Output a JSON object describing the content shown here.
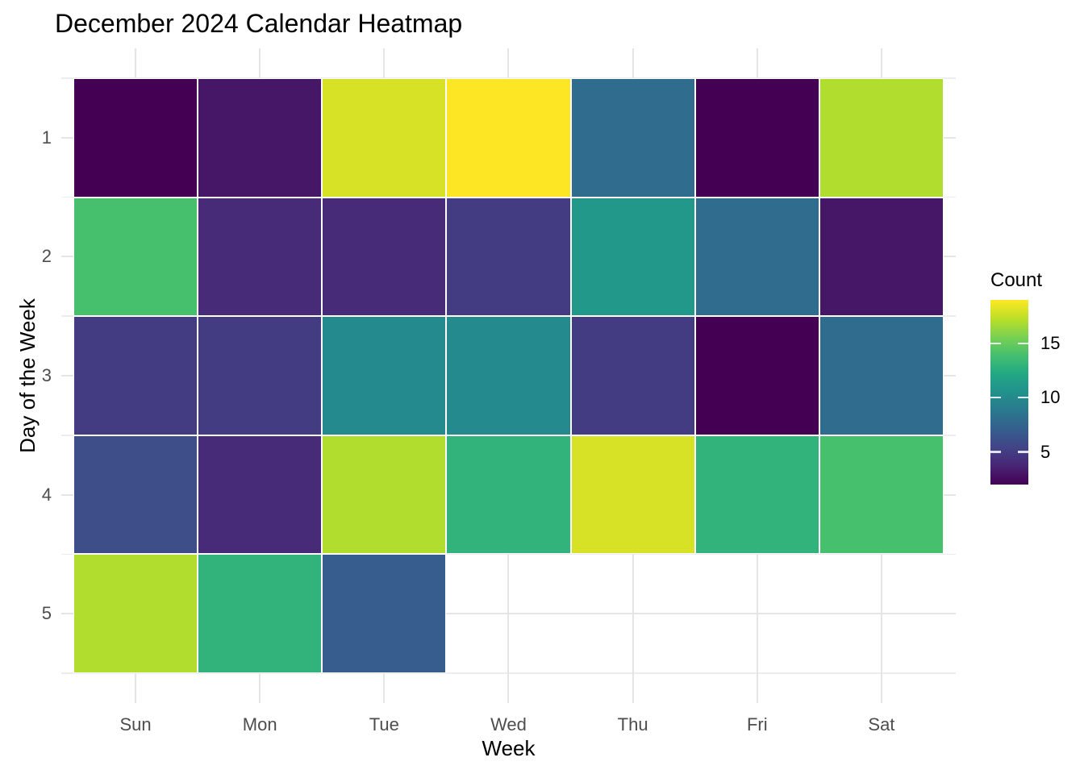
{
  "title": "December 2024 Calendar Heatmap",
  "chart_data": {
    "type": "heatmap",
    "title": "December 2024 Calendar Heatmap",
    "xlabel": "Week",
    "ylabel": "Day of the Week",
    "x_categories": [
      "Sun",
      "Mon",
      "Tue",
      "Wed",
      "Thu",
      "Fri",
      "Sat"
    ],
    "y_categories": [
      "1",
      "2",
      "3",
      "4",
      "5"
    ],
    "values": [
      [
        2,
        3,
        18,
        19,
        8,
        2,
        17
      ],
      [
        14,
        4,
        4,
        5,
        11,
        8,
        3
      ],
      [
        5,
        5,
        10,
        10,
        5,
        2,
        8
      ],
      [
        6,
        4,
        17,
        13,
        18,
        13,
        14
      ],
      [
        17,
        13,
        7,
        null,
        null,
        null,
        null
      ]
    ],
    "legend": {
      "title": "Count",
      "min": 2,
      "max": 19,
      "ticks": [
        5,
        10,
        15
      ]
    },
    "colormap": "viridis",
    "viridis_anchors": [
      "#440154",
      "#482475",
      "#414487",
      "#355f8d",
      "#2a788e",
      "#21918c",
      "#22a884",
      "#44bf70",
      "#7ad151",
      "#bddf26",
      "#fde725"
    ],
    "grid": "on",
    "legend_position": "right"
  },
  "colors": {
    "background": "#ffffff",
    "title_text": "#000000",
    "axis_title_text": "#000000",
    "axis_tick_text": "#4d4d4d",
    "grid_major": "#e5e5e5",
    "grid_minor": "#ededed",
    "cell_border": "#ffffff"
  }
}
